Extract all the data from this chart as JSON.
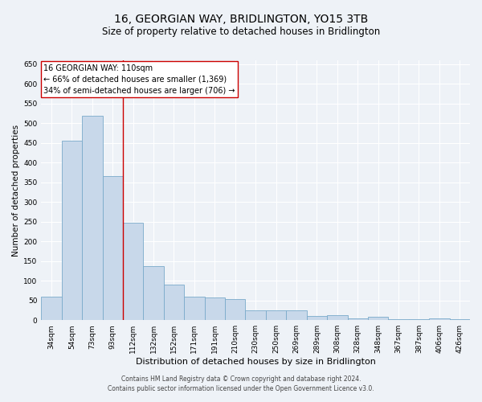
{
  "title": "16, GEORGIAN WAY, BRIDLINGTON, YO15 3TB",
  "subtitle": "Size of property relative to detached houses in Bridlington",
  "xlabel": "Distribution of detached houses by size in Bridlington",
  "ylabel": "Number of detached properties",
  "categories": [
    "34sqm",
    "54sqm",
    "73sqm",
    "93sqm",
    "112sqm",
    "132sqm",
    "152sqm",
    "171sqm",
    "191sqm",
    "210sqm",
    "230sqm",
    "250sqm",
    "269sqm",
    "289sqm",
    "308sqm",
    "328sqm",
    "348sqm",
    "367sqm",
    "387sqm",
    "406sqm",
    "426sqm"
  ],
  "values": [
    60,
    455,
    520,
    365,
    248,
    138,
    90,
    60,
    57,
    53,
    25,
    25,
    25,
    10,
    12,
    5,
    8,
    3,
    3,
    5,
    3
  ],
  "bar_color": "#c8d8ea",
  "bar_edge_color": "#7aaaca",
  "annotation_text_line1": "16 GEORGIAN WAY: 110sqm",
  "annotation_text_line2": "← 66% of detached houses are smaller (1,369)",
  "annotation_text_line3": "34% of semi-detached houses are larger (706) →",
  "annotation_box_color": "#ffffff",
  "annotation_box_edge_color": "#cc0000",
  "vline_color": "#cc0000",
  "vline_x": 3.5,
  "ylim": [
    0,
    660
  ],
  "yticks": [
    0,
    50,
    100,
    150,
    200,
    250,
    300,
    350,
    400,
    450,
    500,
    550,
    600,
    650
  ],
  "footer_line1": "Contains HM Land Registry data © Crown copyright and database right 2024.",
  "footer_line2": "Contains public sector information licensed under the Open Government Licence v3.0.",
  "bg_color": "#eef2f7",
  "plot_bg_color": "#eef2f7",
  "title_fontsize": 10,
  "subtitle_fontsize": 8.5,
  "xlabel_fontsize": 8,
  "ylabel_fontsize": 7.5,
  "tick_fontsize": 6.5,
  "annotation_fontsize": 7,
  "footer_fontsize": 5.5
}
